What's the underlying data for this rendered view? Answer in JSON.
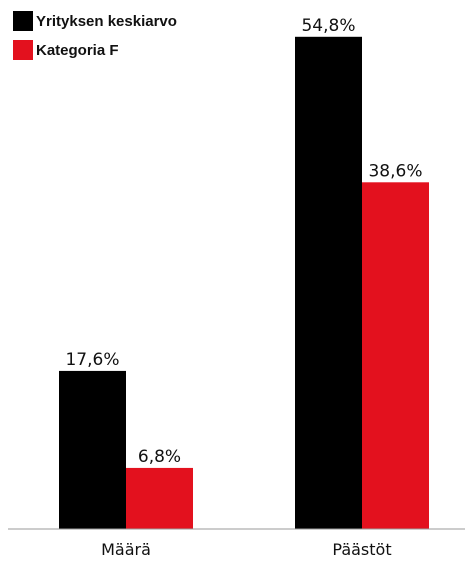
{
  "chart_data": {
    "type": "bar",
    "categories": [
      "Määrä",
      "Päästöt"
    ],
    "series": [
      {
        "name": "Yrityksen keskiarvo",
        "values": [
          17.6,
          54.8
        ],
        "labels": [
          "17,6%",
          "54,8%"
        ],
        "color": "#000000"
      },
      {
        "name": "Kategoria F",
        "values": [
          6.8,
          38.6
        ],
        "labels": [
          "6,8%",
          "38,6%"
        ],
        "color": "#e3111e"
      }
    ],
    "ylim": [
      0,
      55
    ],
    "grid": false,
    "legend": "top-left",
    "title": "",
    "xlabel": "",
    "ylabel": ""
  }
}
